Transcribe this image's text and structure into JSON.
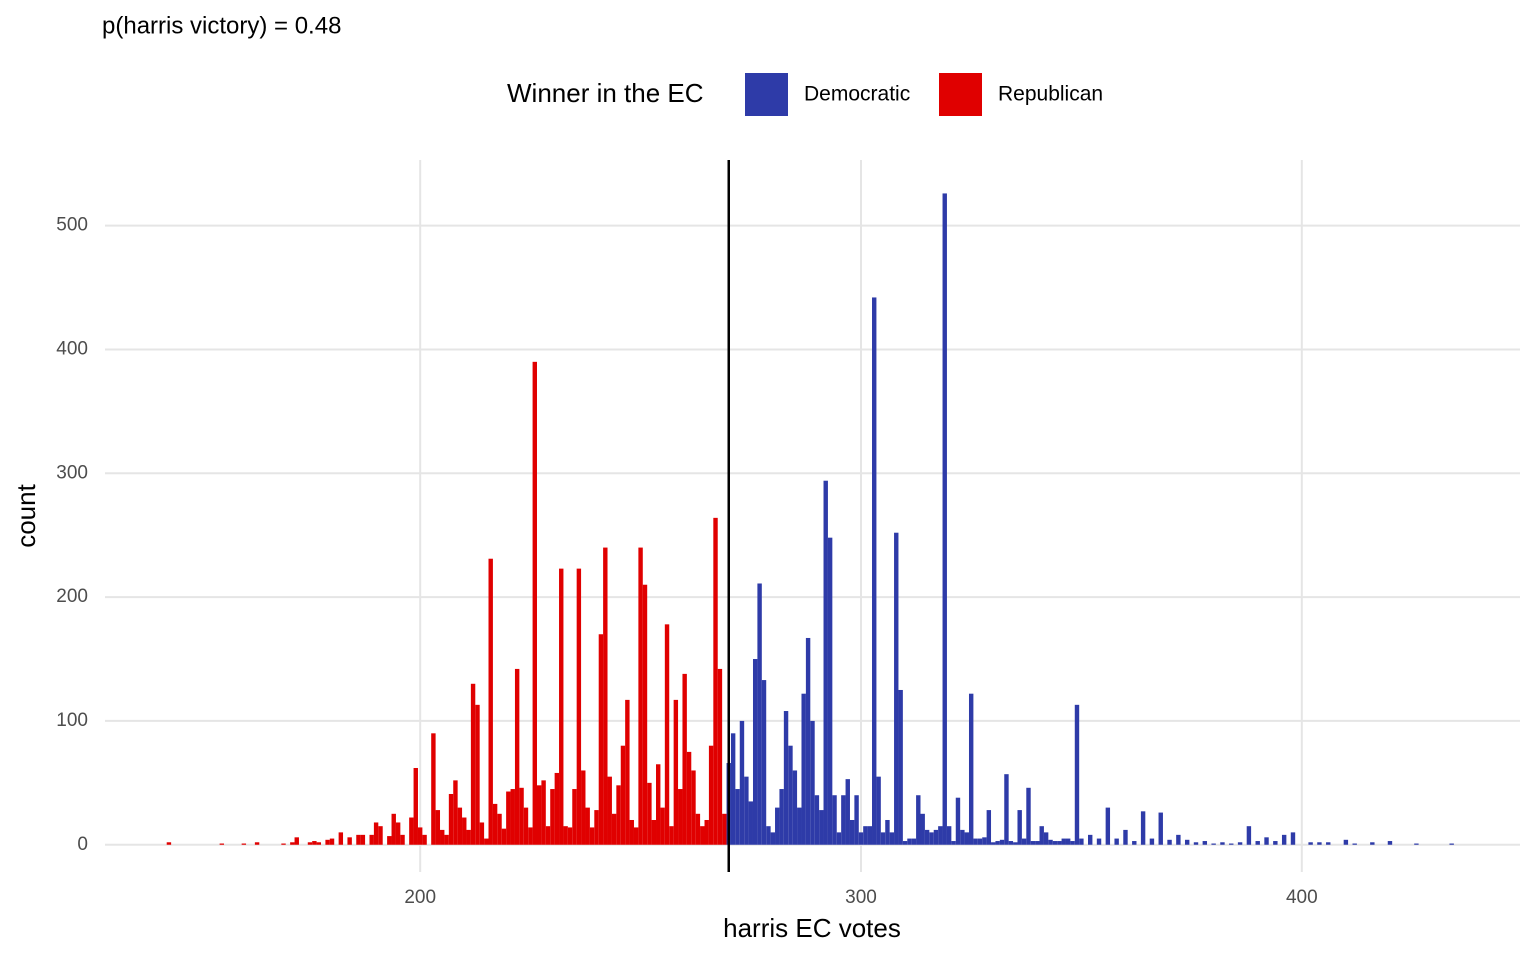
{
  "chart_data": {
    "type": "bar",
    "title": "p(harris victory) = 0.48",
    "legend_title": "Winner in the EC",
    "xlabel": "harris EC votes",
    "ylabel": "count",
    "xlim": [
      128.5,
      449.5
    ],
    "xticks": [
      200,
      300,
      400
    ],
    "ylim": [
      -22,
      553
    ],
    "yticks": [
      0,
      100,
      200,
      300,
      400,
      500
    ],
    "grid": true,
    "legend": "top",
    "vline": 270,
    "series": [
      {
        "name": "Democratic",
        "color": "#2e3ba8",
        "x": [
          270,
          271,
          272,
          273,
          274,
          275,
          276,
          277,
          278,
          279,
          280,
          281,
          282,
          283,
          284,
          285,
          286,
          287,
          288,
          289,
          290,
          291,
          292,
          293,
          294,
          295,
          296,
          297,
          298,
          299,
          300,
          301,
          302,
          303,
          304,
          305,
          306,
          307,
          308,
          309,
          310,
          311,
          312,
          313,
          314,
          315,
          316,
          317,
          318,
          319,
          320,
          321,
          322,
          323,
          324,
          325,
          326,
          327,
          328,
          329,
          330,
          331,
          332,
          333,
          334,
          335,
          336,
          337,
          338,
          339,
          340,
          341,
          342,
          343,
          344,
          345,
          346,
          347,
          348,
          349,
          350,
          352,
          354,
          356,
          358,
          360,
          362,
          364,
          366,
          368,
          370,
          372,
          374,
          376,
          378,
          380,
          382,
          384,
          386,
          388,
          390,
          392,
          394,
          396,
          398,
          402,
          404,
          406,
          410,
          412,
          416,
          420,
          426,
          434
        ],
        "values": [
          66,
          90,
          45,
          100,
          55,
          35,
          150,
          211,
          133,
          15,
          10,
          30,
          45,
          108,
          80,
          60,
          30,
          122,
          167,
          100,
          40,
          28,
          294,
          248,
          40,
          10,
          40,
          53,
          20,
          40,
          10,
          15,
          15,
          442,
          55,
          10,
          20,
          10,
          252,
          125,
          3,
          5,
          5,
          40,
          25,
          12,
          10,
          12,
          15,
          526,
          15,
          3,
          38,
          12,
          10,
          122,
          5,
          5,
          6,
          28,
          2,
          3,
          4,
          57,
          3,
          2,
          28,
          5,
          46,
          3,
          3,
          15,
          10,
          4,
          3,
          3,
          5,
          5,
          3,
          113,
          5,
          8,
          5,
          30,
          5,
          12,
          3,
          27,
          5,
          26,
          4,
          8,
          4,
          2,
          3,
          1,
          2,
          1,
          2,
          15,
          3,
          6,
          3,
          8,
          10,
          2,
          2,
          2,
          4,
          1,
          2,
          3,
          1,
          1
        ]
      },
      {
        "name": "Republican",
        "color": "#e00000",
        "x": [
          143,
          155,
          160,
          163,
          169,
          171,
          172,
          175,
          176,
          177,
          179,
          180,
          182,
          184,
          186,
          187,
          189,
          190,
          191,
          193,
          194,
          195,
          196,
          198,
          199,
          200,
          201,
          203,
          204,
          205,
          206,
          207,
          208,
          209,
          210,
          211,
          212,
          213,
          214,
          215,
          216,
          217,
          218,
          219,
          220,
          221,
          222,
          223,
          224,
          225,
          226,
          227,
          228,
          229,
          230,
          231,
          232,
          233,
          234,
          235,
          236,
          237,
          238,
          239,
          240,
          241,
          242,
          243,
          244,
          245,
          246,
          247,
          248,
          249,
          250,
          251,
          252,
          253,
          254,
          255,
          256,
          257,
          258,
          259,
          260,
          261,
          262,
          263,
          264,
          265,
          266,
          267,
          268,
          269
        ],
        "values": [
          2,
          1,
          1,
          2,
          1,
          2,
          6,
          2,
          3,
          2,
          4,
          5,
          10,
          6,
          8,
          8,
          8,
          18,
          15,
          7,
          25,
          18,
          8,
          22,
          62,
          14,
          8,
          90,
          28,
          12,
          8,
          41,
          52,
          30,
          22,
          12,
          130,
          113,
          18,
          5,
          231,
          33,
          25,
          13,
          43,
          45,
          142,
          46,
          30,
          14,
          390,
          48,
          52,
          15,
          45,
          58,
          223,
          15,
          14,
          45,
          223,
          60,
          30,
          14,
          28,
          170,
          240,
          55,
          25,
          48,
          80,
          117,
          20,
          14,
          240,
          210,
          50,
          20,
          65,
          30,
          178,
          15,
          117,
          45,
          138,
          75,
          60,
          25,
          15,
          20,
          80,
          264,
          142,
          25
        ]
      }
    ]
  }
}
